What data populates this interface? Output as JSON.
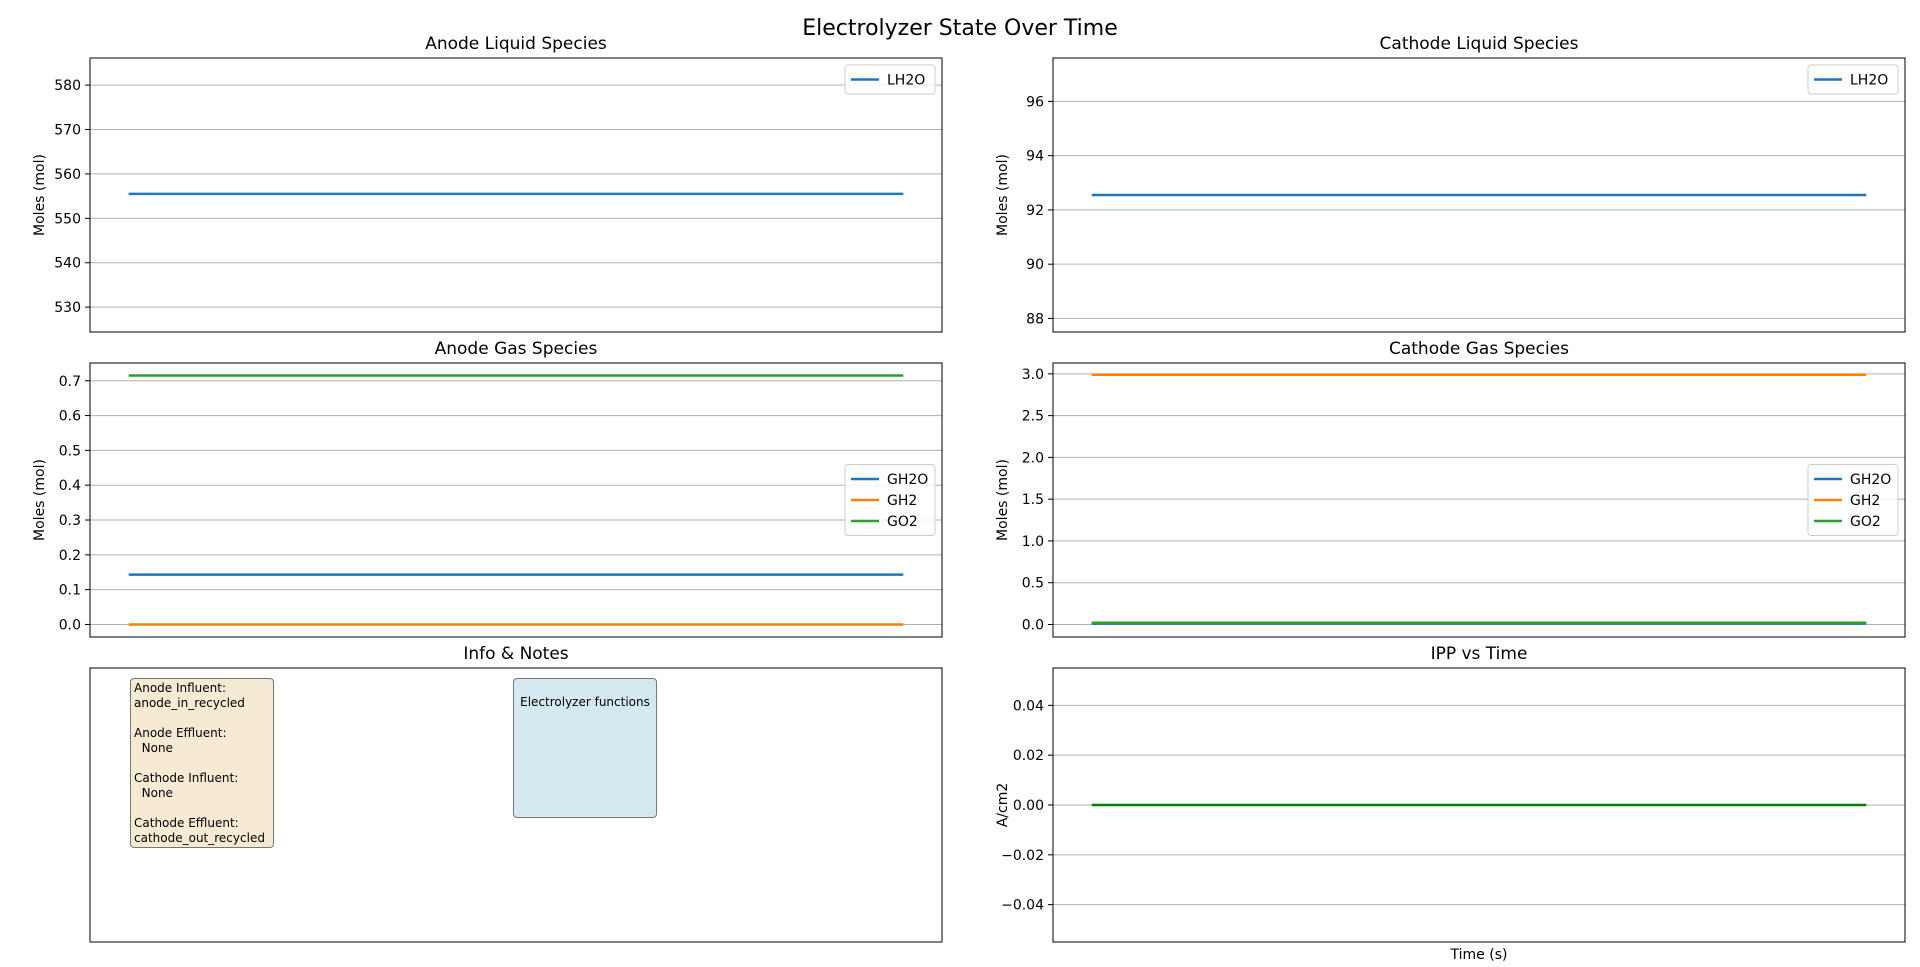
{
  "figure_title": "Electrolyzer State Over Time",
  "colors": {
    "blue": "#1f77b4",
    "orange": "#ff7f0e",
    "green": "#2ca02c",
    "dark_green": "#008000",
    "grid": "#b0b0b0"
  },
  "chart_data": [
    {
      "id": "anode-liquid",
      "type": "line",
      "title": "Anode Liquid Species",
      "xlabel": "",
      "ylabel": "Moles (mol)",
      "x": [
        0,
        1
      ],
      "xlim": [
        -0.05,
        1.05
      ],
      "ylim": [
        524.4,
        586.1
      ],
      "yticks": [
        530,
        540,
        550,
        560,
        570,
        580
      ],
      "ytick_labels": [
        "530",
        "540",
        "550",
        "560",
        "570",
        "580"
      ],
      "legend": "upper right",
      "series": [
        {
          "name": "LH2O",
          "color": "#1f77b4",
          "values": [
            555.5,
            555.5
          ]
        }
      ]
    },
    {
      "id": "cathode-liquid",
      "type": "line",
      "title": "Cathode Liquid Species",
      "xlabel": "",
      "ylabel": "Moles (mol)",
      "x": [
        0,
        1
      ],
      "xlim": [
        -0.05,
        1.05
      ],
      "ylim": [
        87.5,
        97.6
      ],
      "yticks": [
        88,
        90,
        92,
        94,
        96
      ],
      "ytick_labels": [
        "88",
        "90",
        "92",
        "94",
        "96"
      ],
      "legend": "upper right",
      "series": [
        {
          "name": "LH2O",
          "color": "#1f77b4",
          "values": [
            92.55,
            92.55
          ]
        }
      ]
    },
    {
      "id": "anode-gas",
      "type": "line",
      "title": "Anode Gas Species",
      "xlabel": "",
      "ylabel": "Moles (mol)",
      "x": [
        0,
        1
      ],
      "xlim": [
        -0.05,
        1.05
      ],
      "ylim": [
        -0.036,
        0.751
      ],
      "yticks": [
        0,
        0.1,
        0.2,
        0.3,
        0.4,
        0.5,
        0.6,
        0.7
      ],
      "ytick_labels": [
        "0.0",
        "0.1",
        "0.2",
        "0.3",
        "0.4",
        "0.5",
        "0.6",
        "0.7"
      ],
      "legend": "center right",
      "series": [
        {
          "name": "GH2O",
          "color": "#1f77b4",
          "values": [
            0.143,
            0.143
          ]
        },
        {
          "name": "GH2",
          "color": "#ff7f0e",
          "values": [
            0,
            0
          ]
        },
        {
          "name": "GO2",
          "color": "#2ca02c",
          "values": [
            0.715,
            0.715
          ]
        }
      ]
    },
    {
      "id": "cathode-gas",
      "type": "line",
      "title": "Cathode Gas Species",
      "xlabel": "",
      "ylabel": "Moles (mol)",
      "x": [
        0,
        1
      ],
      "xlim": [
        -0.05,
        1.05
      ],
      "ylim": [
        -0.15,
        3.13
      ],
      "yticks": [
        0,
        0.5,
        1.0,
        1.5,
        2.0,
        2.5,
        3.0
      ],
      "ytick_labels": [
        "0.0",
        "0.5",
        "1.0",
        "1.5",
        "2.0",
        "2.5",
        "3.0"
      ],
      "legend": "center right",
      "series": [
        {
          "name": "GH2O",
          "color": "#1f77b4",
          "values": [
            0.01,
            0.01
          ]
        },
        {
          "name": "GH2",
          "color": "#ff7f0e",
          "values": [
            2.99,
            2.99
          ]
        },
        {
          "name": "GO2",
          "color": "#2ca02c",
          "values": [
            0.02,
            0.02
          ]
        }
      ]
    },
    {
      "id": "ipp-time",
      "type": "line",
      "title": "IPP vs Time",
      "xlabel": "Time (s)",
      "ylabel": "A/cm2",
      "x": [
        0,
        1
      ],
      "xlim": [
        -0.05,
        1.05
      ],
      "ylim": [
        -0.055,
        0.055
      ],
      "yticks": [
        -0.04,
        -0.02,
        0,
        0.02,
        0.04
      ],
      "ytick_labels": [
        "−0.04",
        "−0.02",
        "0.00",
        "0.02",
        "0.04"
      ],
      "legend": "none",
      "series": [
        {
          "name": "IPP",
          "color": "#008000",
          "values": [
            0,
            0
          ]
        }
      ]
    }
  ],
  "info_panel": {
    "title": "Info & Notes",
    "left_note": "Anode Influent:\nanode_in_recycled\n\nAnode Effluent:\n  None\n\nCathode Influent:\n  None\n\nCathode Effluent:\ncathode_out_recycled",
    "right_note": "Electrolyzer functions"
  }
}
